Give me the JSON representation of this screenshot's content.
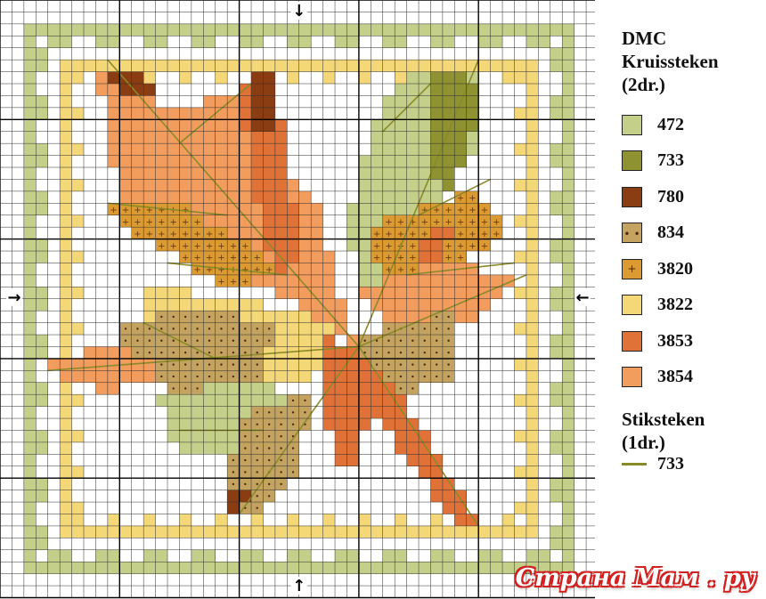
{
  "colors": {
    "dmc_472": "#c4cf8a",
    "dmc_733": "#8f9230",
    "dmc_780": "#8a3c12",
    "dmc_834": "#c3a35f",
    "dmc_3820": "#dc9a32",
    "dmc_3822": "#f4d777",
    "dmc_3853": "#e07237",
    "dmc_3854": "#f29c5e",
    "backstitch": "#8a8a28",
    "grid_fine": "#2b2b2b",
    "grid_major": "#000000"
  },
  "legend": {
    "brand": "DMC",
    "cross_stitch_label": "Kruissteken",
    "cross_stitch_strands": "(2dr.)",
    "items": [
      {
        "code": "472",
        "color_key": "dmc_472",
        "symbol": ""
      },
      {
        "code": "733",
        "color_key": "dmc_733",
        "symbol": ""
      },
      {
        "code": "780",
        "color_key": "dmc_780",
        "symbol": ""
      },
      {
        "code": "834",
        "color_key": "dmc_834",
        "symbol": "∙ ∙"
      },
      {
        "code": "3820",
        "color_key": "dmc_3820",
        "symbol": "+"
      },
      {
        "code": "3822",
        "color_key": "dmc_3822",
        "symbol": ""
      },
      {
        "code": "3853",
        "color_key": "dmc_3853",
        "symbol": ""
      },
      {
        "code": "3854",
        "color_key": "dmc_3854",
        "symbol": ""
      }
    ],
    "backstitch_label": "Stiksteken",
    "backstitch_strands": "(1dr.)",
    "backstitch_code": "733"
  },
  "watermark": "Страна Мам . ру",
  "center_arrows": {
    "top": "↓",
    "bottom": "↑",
    "left": "→",
    "right": "←"
  }
}
